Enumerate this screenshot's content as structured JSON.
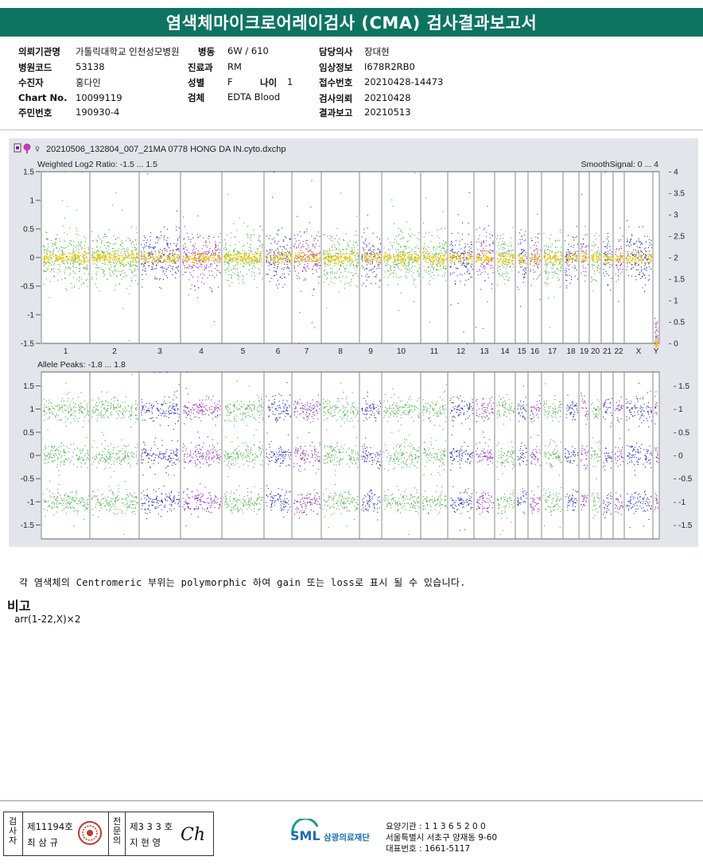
{
  "report": {
    "title": "염색체마이크로어레이검사 (CMA) 검사결과보고서"
  },
  "patient": {
    "institution_label": "의뢰기관명",
    "institution_value": "가톨릭대학교 인천성모병원",
    "ward_label": "병동",
    "ward_value": "6W / 610",
    "doctor_label": "담당의사",
    "doctor_value": "장대현",
    "hospital_code_label": "병원코드",
    "hospital_code_value": "53138",
    "dept_label": "진료과",
    "dept_value": "RM",
    "clinical_label": "임상정보",
    "clinical_value": "I678R2RB0",
    "examinee_label": "수진자",
    "examinee_value": "홍다인",
    "sex_label": "성별",
    "sex_value": "F",
    "age_label": "나이",
    "age_value": "1",
    "receipt_label": "접수번호",
    "receipt_value": "20210428-14473",
    "chart_label": "Chart No.",
    "chart_value": "10099119",
    "specimen_label": "검체",
    "specimen_value": "EDTA Blood",
    "request_label": "검사의뢰",
    "request_value": "20210428",
    "idnum_label": "주민번호",
    "idnum_value": "190930-4",
    "report_date_label": "결과보고",
    "report_date_value": "20210513"
  },
  "plot": {
    "file_name": "20210506_132804_007_21MA 0778 HONG DA IN.cyto.dxchp",
    "top_panel_label": "Weighted Log2 Ratio: -1.5 ... 1.5",
    "smooth_label": "SmoothSignal: 0 ... 4",
    "bottom_panel_label": "Allele Peaks: -1.8 ... 1.8",
    "colors": {
      "green": "#3fb03f",
      "blue": "#1f22c4",
      "purple": "#8a19b8",
      "yellow": "#f5c400"
    }
  },
  "chart_data": [
    {
      "type": "scatter",
      "title": "Weighted Log2 Ratio: -1.5 ... 1.5",
      "ylim": [
        -1.5,
        1.5
      ],
      "y_ticks": [
        "1.5",
        "1",
        "0.5",
        "0",
        "-0.5",
        "-1",
        "-1.5"
      ],
      "y2_label": "SmoothSignal: 0 ... 4",
      "y2lim": [
        0,
        4
      ],
      "y2_ticks": [
        "4",
        "3.5",
        "3",
        "2.5",
        "2",
        "1.5",
        "1",
        "0.5",
        "0"
      ],
      "categories": [
        "1",
        "2",
        "3",
        "4",
        "5",
        "6",
        "7",
        "8",
        "9",
        "10",
        "11",
        "12",
        "13",
        "14",
        "15",
        "16",
        "17",
        "18",
        "19",
        "20",
        "21",
        "22",
        "X",
        "Y"
      ],
      "values": [
        0,
        0,
        0,
        0,
        0,
        0,
        0,
        0,
        0,
        0,
        0,
        0,
        0,
        0,
        0,
        0,
        0,
        0,
        0,
        0,
        0,
        0,
        0,
        -1.4
      ],
      "smooth_signal": [
        2,
        2,
        2,
        2,
        2,
        2,
        2,
        2,
        2,
        2,
        2,
        2,
        2,
        2,
        2,
        2,
        2,
        2,
        2,
        2,
        2,
        2,
        2,
        0
      ]
    },
    {
      "type": "scatter",
      "title": "Allele Peaks: -1.8 ... 1.8",
      "ylim": [
        -1.8,
        1.8
      ],
      "y_ticks": [
        "1.5",
        "1",
        "0.5",
        "0",
        "-0.5",
        "-1",
        "-1.5"
      ],
      "categories": [
        "1",
        "2",
        "3",
        "4",
        "5",
        "6",
        "7",
        "8",
        "9",
        "10",
        "11",
        "12",
        "13",
        "14",
        "15",
        "16",
        "17",
        "18",
        "19",
        "20",
        "21",
        "22",
        "X",
        "Y"
      ],
      "peaks": [
        1,
        0,
        -1
      ]
    }
  ],
  "note": "각 염색체의 Centromeric 부위는 polymorphic 하여 gain 또는 loss로 표시 될 수 있습니다.",
  "remarks": {
    "title": "비고",
    "body": "arr(1-22,X)×2"
  },
  "footer": {
    "inspector_label": "검사자",
    "inspector_number": "제11194호",
    "inspector_name": "최 삼 규",
    "specialist_label": "전문의",
    "specialist_number": "제3 3 3 호",
    "specialist_name": "지 현 영",
    "signature": "Ch",
    "logo_text": "SML",
    "logo_name": "삼광의료재단",
    "care_code": "요양기관 : 1 1 3 6 5 2 0 0",
    "address": "서울특별시 서초구 양재동 9-60",
    "phone": "대표번호 : 1661-5117"
  }
}
